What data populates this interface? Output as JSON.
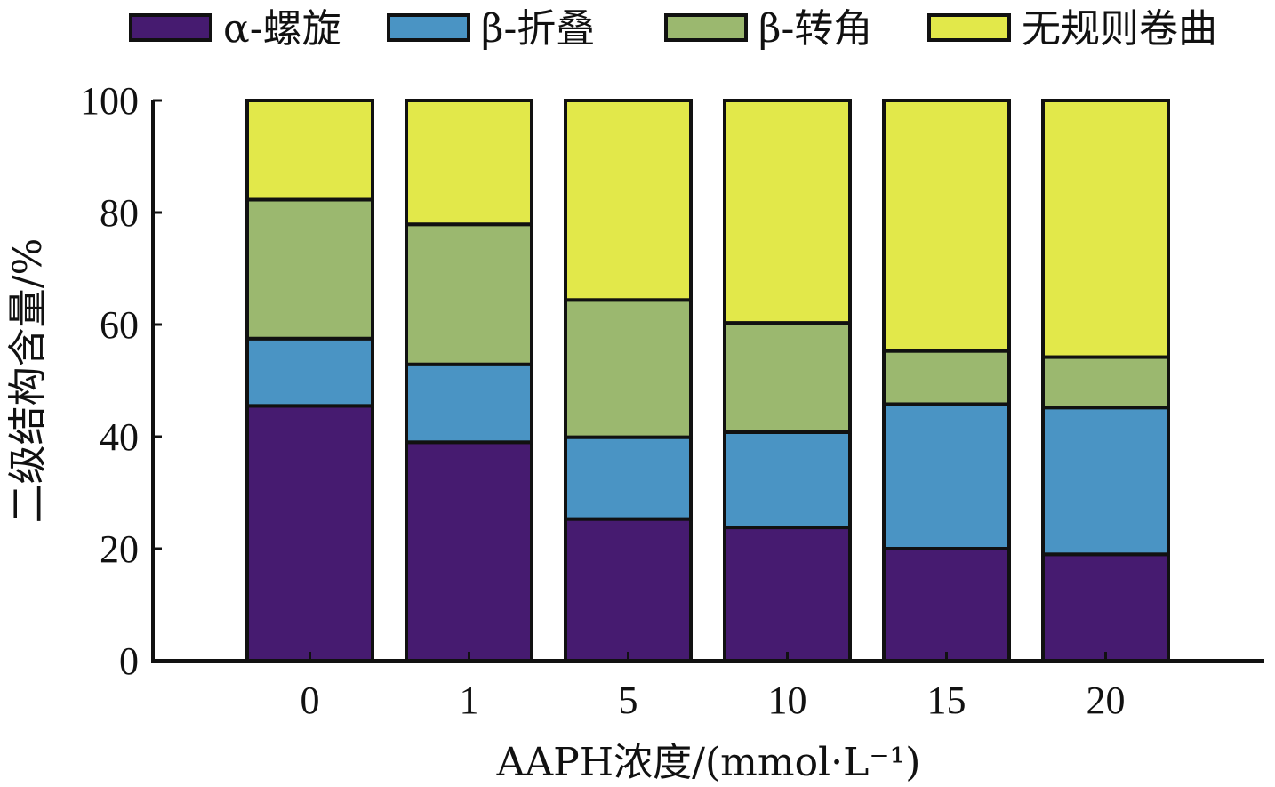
{
  "chart_data": {
    "type": "bar",
    "stacked": true,
    "categories": [
      "0",
      "1",
      "5",
      "10",
      "15",
      "20"
    ],
    "series": [
      {
        "name": "α-螺旋",
        "color": "#461b70",
        "values": [
          45.5,
          39.0,
          25.3,
          23.8,
          20.0,
          19.0
        ]
      },
      {
        "name": "β-折叠",
        "color": "#4a94c4",
        "values": [
          12.0,
          13.9,
          14.6,
          17.0,
          25.8,
          26.2
        ]
      },
      {
        "name": "β-转角",
        "color": "#9bb86f",
        "values": [
          24.8,
          25.0,
          24.5,
          19.5,
          9.5,
          9.0
        ]
      },
      {
        "name": "无规则卷曲",
        "color": "#e2e84a",
        "values": [
          17.7,
          22.1,
          35.6,
          39.7,
          44.7,
          45.8
        ]
      }
    ],
    "xlabel": "AAPH浓度/(mmol·L⁻¹)",
    "ylabel": "二级结构含量/%",
    "ylim": [
      0,
      100
    ],
    "yticks": [
      "0",
      "20",
      "40",
      "60",
      "80",
      "100"
    ],
    "legend_position": "top",
    "grid": false
  }
}
